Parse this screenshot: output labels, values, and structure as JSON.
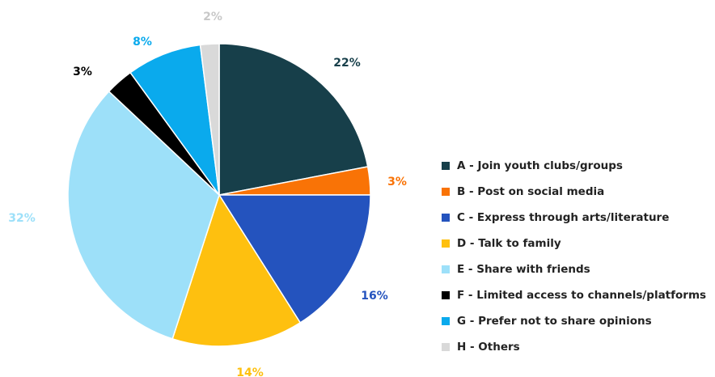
{
  "chart_data": {
    "type": "pie",
    "title": "",
    "legend_position": "right",
    "slices": [
      {
        "label": "A - Join youth clubs/groups",
        "value": 22,
        "value_label": "22%",
        "color": "#173f4a"
      },
      {
        "label": "B - Post on social media",
        "value": 3,
        "value_label": "3%",
        "color": "#f97306"
      },
      {
        "label": "C - Express through arts/literature",
        "value": 16,
        "value_label": "16%",
        "color": "#2453be"
      },
      {
        "label": "D - Talk to family",
        "value": 14,
        "value_label": "14%",
        "color": "#fec00f"
      },
      {
        "label": "E - Share with friends",
        "value": 32,
        "value_label": "32%",
        "color": "#9de0f9"
      },
      {
        "label": "F - Limited access to channels/platforms",
        "value": 3,
        "value_label": "3%",
        "color": "#000000"
      },
      {
        "label": "G - Prefer not to share opinions",
        "value": 8,
        "value_label": "8%",
        "color": "#0aaaed"
      },
      {
        "label": "H - Others",
        "value": 2,
        "value_label": "2%",
        "color": "#d9d9d9"
      }
    ]
  }
}
